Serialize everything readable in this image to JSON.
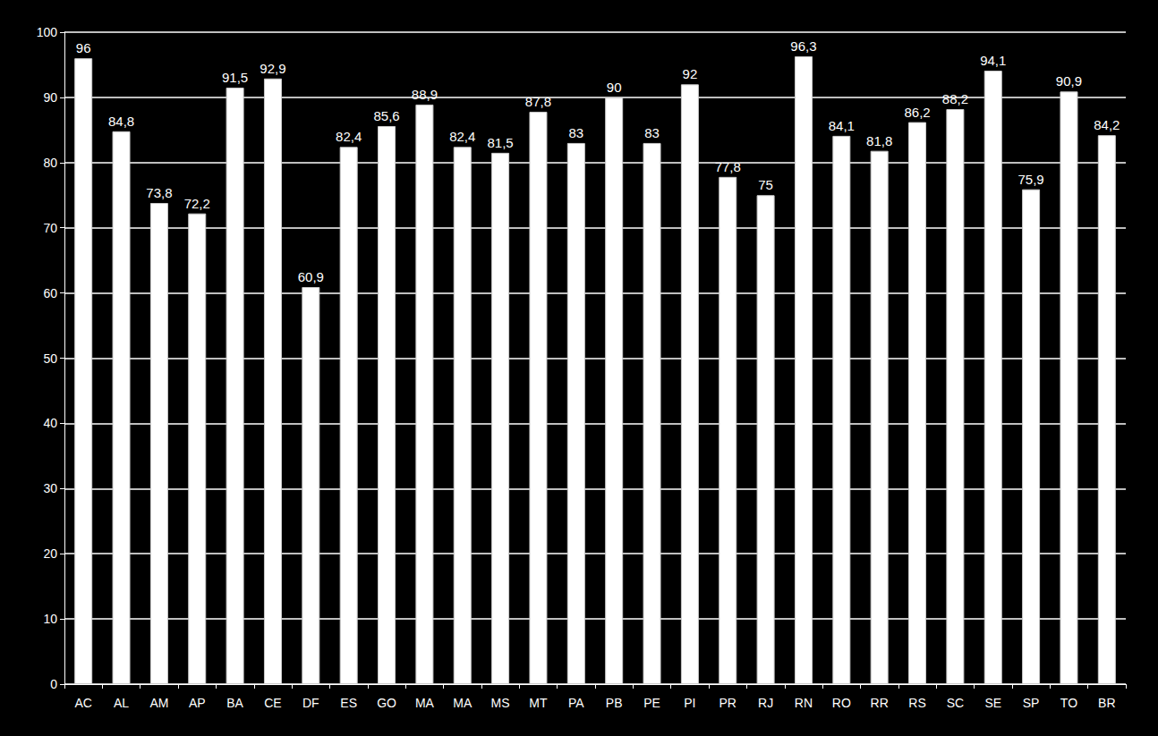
{
  "chart_data": {
    "type": "bar",
    "categories": [
      "AC",
      "AL",
      "AM",
      "AP",
      "BA",
      "CE",
      "DF",
      "ES",
      "GO",
      "MA",
      "MA",
      "MS",
      "MT",
      "PA",
      "PB",
      "PE",
      "PI",
      "PR",
      "RJ",
      "RN",
      "RO",
      "RR",
      "RS",
      "SC",
      "SE",
      "SP",
      "TO",
      "BR"
    ],
    "values": [
      96,
      84.8,
      73.8,
      72.2,
      91.5,
      92.9,
      60.9,
      82.4,
      85.6,
      88.9,
      82.4,
      81.5,
      87.8,
      83,
      90,
      83,
      92,
      77.8,
      75,
      96.3,
      84.1,
      81.8,
      86.2,
      88.2,
      94.1,
      75.9,
      90.9,
      84.2
    ],
    "value_labels": [
      "96",
      "84,8",
      "73,8",
      "72,2",
      "91,5",
      "92,9",
      "60,9",
      "82,4",
      "85,6",
      "88,9",
      "82,4",
      "81,5",
      "87,8",
      "83",
      "90",
      "83",
      "92",
      "77,8",
      "75",
      "96,3",
      "84,1",
      "81,8",
      "86,2",
      "88,2",
      "94,1",
      "75,9",
      "90,9",
      "84,2"
    ],
    "color": "#ffffff",
    "ylim": [
      0,
      100
    ],
    "yticks": [
      0,
      10,
      20,
      30,
      40,
      50,
      60,
      70,
      80,
      90,
      100
    ],
    "grid": true,
    "data_labels": true
  }
}
